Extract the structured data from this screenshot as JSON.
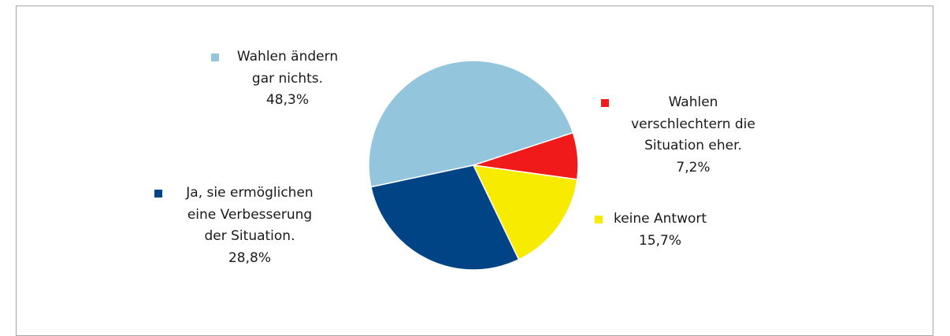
{
  "chart_data": {
    "type": "pie",
    "categories": [
      "Wahlen ändern gar nichts.",
      "Wahlen verschlechtern die Situation eher.",
      "keine Antwort",
      "Ja, sie ermöglichen eine Verbesserung der Situation."
    ],
    "values": [
      48.3,
      7.2,
      15.7,
      28.8
    ],
    "value_labels": [
      "48,3%",
      "7,2%",
      "15,7%",
      "28,8%"
    ],
    "colors": [
      "#93c5dc",
      "#f01a1a",
      "#f7ec00",
      "#004486"
    ]
  }
}
